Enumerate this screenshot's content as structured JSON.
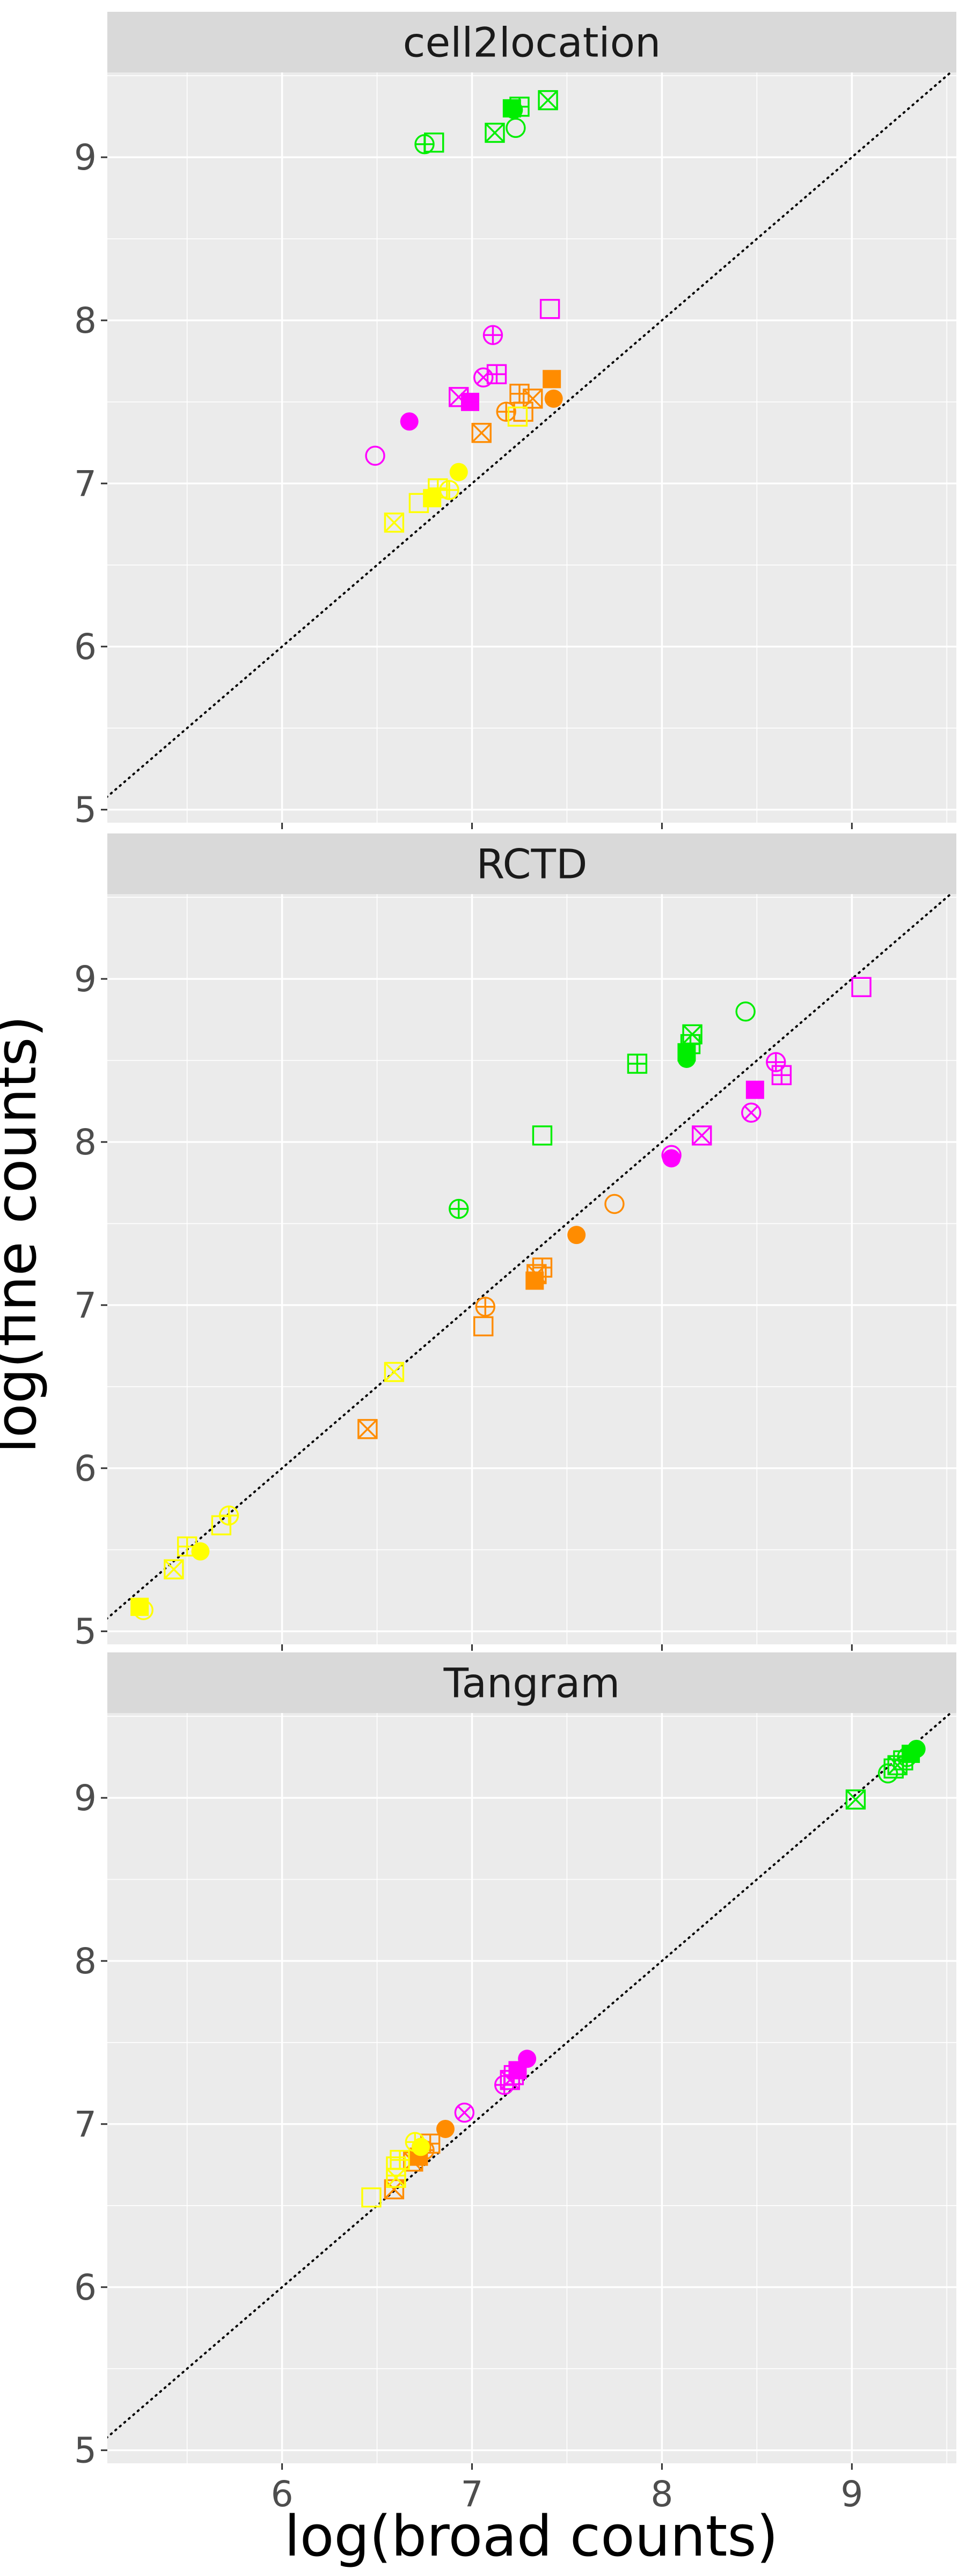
{
  "figure": {
    "xlabel": "log(broad counts)",
    "ylabel": "log(fine counts)"
  },
  "style": {
    "panel_background": "#EBEBEB",
    "strip_background": "#D9D9D9",
    "grid_color": "#FFFFFF",
    "reference_line": "dotted diagonal y = x"
  },
  "chart_data": [
    {
      "type": "scatter",
      "title": "cell2location",
      "xlim": [
        5.08,
        9.55
      ],
      "ylim": [
        4.92,
        9.52
      ],
      "x_ticks": [
        6,
        7,
        8,
        9
      ],
      "y_ticks": [
        5,
        6,
        7,
        8,
        9
      ],
      "points": [
        {
          "x": 6.8,
          "y": 9.09,
          "color": "#00EE00",
          "shape": "square_open"
        },
        {
          "x": 6.75,
          "y": 9.08,
          "color": "#00EE00",
          "shape": "circle_plus"
        },
        {
          "x": 7.21,
          "y": 9.3,
          "color": "#00EE00",
          "shape": "square_filled"
        },
        {
          "x": 7.22,
          "y": 9.29,
          "color": "#00EE00",
          "shape": "circle_filled"
        },
        {
          "x": 7.25,
          "y": 9.31,
          "color": "#00EE00",
          "shape": "square_plus"
        },
        {
          "x": 7.4,
          "y": 9.35,
          "color": "#00EE00",
          "shape": "square_cross"
        },
        {
          "x": 7.12,
          "y": 9.15,
          "color": "#00EE00",
          "shape": "square_cross"
        },
        {
          "x": 7.23,
          "y": 9.18,
          "color": "#00EE00",
          "shape": "circle_open"
        },
        {
          "x": 7.41,
          "y": 8.07,
          "color": "#FF00FF",
          "shape": "square_open"
        },
        {
          "x": 7.11,
          "y": 7.91,
          "color": "#FF00FF",
          "shape": "circle_plus"
        },
        {
          "x": 7.13,
          "y": 7.67,
          "color": "#FF00FF",
          "shape": "square_plus"
        },
        {
          "x": 7.06,
          "y": 7.65,
          "color": "#FF00FF",
          "shape": "circle_cross"
        },
        {
          "x": 6.93,
          "y": 7.53,
          "color": "#FF00FF",
          "shape": "square_cross"
        },
        {
          "x": 6.99,
          "y": 7.5,
          "color": "#FF00FF",
          "shape": "square_filled"
        },
        {
          "x": 6.67,
          "y": 7.38,
          "color": "#FF00FF",
          "shape": "circle_filled"
        },
        {
          "x": 6.49,
          "y": 7.17,
          "color": "#FF00FF",
          "shape": "circle_open"
        },
        {
          "x": 7.42,
          "y": 7.64,
          "color": "#FF8C00",
          "shape": "square_filled"
        },
        {
          "x": 7.43,
          "y": 7.52,
          "color": "#FF8C00",
          "shape": "circle_filled"
        },
        {
          "x": 7.25,
          "y": 7.55,
          "color": "#FF8C00",
          "shape": "square_plus"
        },
        {
          "x": 7.32,
          "y": 7.52,
          "color": "#FF8C00",
          "shape": "square_cross"
        },
        {
          "x": 7.18,
          "y": 7.44,
          "color": "#FF8C00",
          "shape": "circle_plus"
        },
        {
          "x": 7.27,
          "y": 7.44,
          "color": "#FF8C00",
          "shape": "square_open"
        },
        {
          "x": 7.05,
          "y": 7.31,
          "color": "#FF8C00",
          "shape": "square_cross"
        },
        {
          "x": 7.24,
          "y": 7.41,
          "color": "#FFFF00",
          "shape": "square_open"
        },
        {
          "x": 6.93,
          "y": 7.07,
          "color": "#FFFF00",
          "shape": "circle_filled"
        },
        {
          "x": 6.82,
          "y": 6.97,
          "color": "#FFFF00",
          "shape": "square_plus"
        },
        {
          "x": 6.88,
          "y": 6.96,
          "color": "#FFFF00",
          "shape": "circle_plus"
        },
        {
          "x": 6.79,
          "y": 6.91,
          "color": "#FFFF00",
          "shape": "square_filled"
        },
        {
          "x": 6.72,
          "y": 6.88,
          "color": "#FFFF00",
          "shape": "square_open"
        },
        {
          "x": 6.59,
          "y": 6.76,
          "color": "#FFFF00",
          "shape": "square_cross"
        }
      ]
    },
    {
      "type": "scatter",
      "title": "RCTD",
      "xlim": [
        5.08,
        9.55
      ],
      "ylim": [
        4.92,
        9.52
      ],
      "x_ticks": [
        6,
        7,
        8,
        9
      ],
      "y_ticks": [
        5,
        6,
        7,
        8,
        9
      ],
      "points": [
        {
          "x": 8.44,
          "y": 8.8,
          "color": "#00EE00",
          "shape": "circle_open"
        },
        {
          "x": 8.16,
          "y": 8.66,
          "color": "#00EE00",
          "shape": "square_cross"
        },
        {
          "x": 8.15,
          "y": 8.6,
          "color": "#00EE00",
          "shape": "square_plus"
        },
        {
          "x": 8.13,
          "y": 8.55,
          "color": "#00EE00",
          "shape": "square_filled"
        },
        {
          "x": 8.13,
          "y": 8.51,
          "color": "#00EE00",
          "shape": "circle_filled"
        },
        {
          "x": 7.87,
          "y": 8.48,
          "color": "#00EE00",
          "shape": "square_plus"
        },
        {
          "x": 7.37,
          "y": 8.04,
          "color": "#00EE00",
          "shape": "square_open"
        },
        {
          "x": 6.93,
          "y": 7.59,
          "color": "#00EE00",
          "shape": "circle_plus"
        },
        {
          "x": 9.05,
          "y": 8.95,
          "color": "#FF00FF",
          "shape": "square_open"
        },
        {
          "x": 8.6,
          "y": 8.49,
          "color": "#FF00FF",
          "shape": "circle_plus"
        },
        {
          "x": 8.63,
          "y": 8.41,
          "color": "#FF00FF",
          "shape": "square_plus"
        },
        {
          "x": 8.49,
          "y": 8.32,
          "color": "#FF00FF",
          "shape": "square_filled"
        },
        {
          "x": 8.47,
          "y": 8.18,
          "color": "#FF00FF",
          "shape": "circle_cross"
        },
        {
          "x": 8.21,
          "y": 8.04,
          "color": "#FF00FF",
          "shape": "square_cross"
        },
        {
          "x": 8.05,
          "y": 7.9,
          "color": "#FF00FF",
          "shape": "circle_filled"
        },
        {
          "x": 8.05,
          "y": 7.92,
          "color": "#FF00FF",
          "shape": "circle_open"
        },
        {
          "x": 7.75,
          "y": 7.62,
          "color": "#FF8C00",
          "shape": "circle_open"
        },
        {
          "x": 7.55,
          "y": 7.43,
          "color": "#FF8C00",
          "shape": "circle_filled"
        },
        {
          "x": 7.37,
          "y": 7.23,
          "color": "#FF8C00",
          "shape": "square_plus"
        },
        {
          "x": 7.34,
          "y": 7.19,
          "color": "#FF8C00",
          "shape": "square_cross"
        },
        {
          "x": 7.33,
          "y": 7.15,
          "color": "#FF8C00",
          "shape": "square_filled"
        },
        {
          "x": 7.07,
          "y": 6.99,
          "color": "#FF8C00",
          "shape": "circle_plus"
        },
        {
          "x": 7.06,
          "y": 6.87,
          "color": "#FF8C00",
          "shape": "square_open"
        },
        {
          "x": 6.45,
          "y": 6.24,
          "color": "#FF8C00",
          "shape": "square_cross"
        },
        {
          "x": 6.59,
          "y": 6.59,
          "color": "#FFFF00",
          "shape": "square_cross"
        },
        {
          "x": 5.72,
          "y": 5.71,
          "color": "#FFFF00",
          "shape": "circle_plus"
        },
        {
          "x": 5.68,
          "y": 5.65,
          "color": "#FFFF00",
          "shape": "square_open"
        },
        {
          "x": 5.57,
          "y": 5.49,
          "color": "#FFFF00",
          "shape": "circle_filled"
        },
        {
          "x": 5.5,
          "y": 5.52,
          "color": "#FFFF00",
          "shape": "square_plus"
        },
        {
          "x": 5.43,
          "y": 5.38,
          "color": "#FFFF00",
          "shape": "square_cross"
        },
        {
          "x": 5.25,
          "y": 5.15,
          "color": "#FFFF00",
          "shape": "square_filled"
        },
        {
          "x": 5.27,
          "y": 5.13,
          "color": "#FFFF00",
          "shape": "circle_open"
        }
      ]
    },
    {
      "type": "scatter",
      "title": "Tangram",
      "xlim": [
        5.08,
        9.55
      ],
      "ylim": [
        4.92,
        9.52
      ],
      "x_ticks": [
        6,
        7,
        8,
        9
      ],
      "y_ticks": [
        5,
        6,
        7,
        8,
        9
      ],
      "points": [
        {
          "x": 9.34,
          "y": 9.3,
          "color": "#00EE00",
          "shape": "circle_filled"
        },
        {
          "x": 9.31,
          "y": 9.27,
          "color": "#00EE00",
          "shape": "square_filled"
        },
        {
          "x": 9.29,
          "y": 9.25,
          "color": "#00EE00",
          "shape": "circle_plus"
        },
        {
          "x": 9.27,
          "y": 9.23,
          "color": "#00EE00",
          "shape": "square_plus"
        },
        {
          "x": 9.24,
          "y": 9.2,
          "color": "#00EE00",
          "shape": "square_cross"
        },
        {
          "x": 9.22,
          "y": 9.18,
          "color": "#00EE00",
          "shape": "square_open"
        },
        {
          "x": 9.19,
          "y": 9.15,
          "color": "#00EE00",
          "shape": "circle_open"
        },
        {
          "x": 9.02,
          "y": 8.99,
          "color": "#00EE00",
          "shape": "square_cross"
        },
        {
          "x": 7.29,
          "y": 7.4,
          "color": "#FF00FF",
          "shape": "circle_filled"
        },
        {
          "x": 7.24,
          "y": 7.33,
          "color": "#FF00FF",
          "shape": "square_filled"
        },
        {
          "x": 7.22,
          "y": 7.3,
          "color": "#FF00FF",
          "shape": "square_plus"
        },
        {
          "x": 7.2,
          "y": 7.27,
          "color": "#FF00FF",
          "shape": "square_cross"
        },
        {
          "x": 7.17,
          "y": 7.24,
          "color": "#FF00FF",
          "shape": "circle_plus"
        },
        {
          "x": 6.96,
          "y": 7.07,
          "color": "#FF00FF",
          "shape": "circle_cross"
        },
        {
          "x": 6.86,
          "y": 6.97,
          "color": "#FF8C00",
          "shape": "circle_filled"
        },
        {
          "x": 6.78,
          "y": 6.88,
          "color": "#FF8C00",
          "shape": "square_plus"
        },
        {
          "x": 6.75,
          "y": 6.84,
          "color": "#FF8C00",
          "shape": "circle_plus"
        },
        {
          "x": 6.72,
          "y": 6.8,
          "color": "#FF8C00",
          "shape": "square_filled"
        },
        {
          "x": 6.69,
          "y": 6.77,
          "color": "#FF8C00",
          "shape": "square_cross"
        },
        {
          "x": 6.59,
          "y": 6.6,
          "color": "#FF8C00",
          "shape": "square_cross"
        },
        {
          "x": 6.73,
          "y": 6.86,
          "color": "#FFFF00",
          "shape": "circle_filled"
        },
        {
          "x": 6.7,
          "y": 6.89,
          "color": "#FFFF00",
          "shape": "circle_plus"
        },
        {
          "x": 6.62,
          "y": 6.78,
          "color": "#FFFF00",
          "shape": "square_plus"
        },
        {
          "x": 6.6,
          "y": 6.74,
          "color": "#FFFF00",
          "shape": "square_open"
        },
        {
          "x": 6.6,
          "y": 6.67,
          "color": "#FFFF00",
          "shape": "square_cross"
        },
        {
          "x": 6.47,
          "y": 6.55,
          "color": "#FFFF00",
          "shape": "square_open"
        }
      ]
    }
  ]
}
